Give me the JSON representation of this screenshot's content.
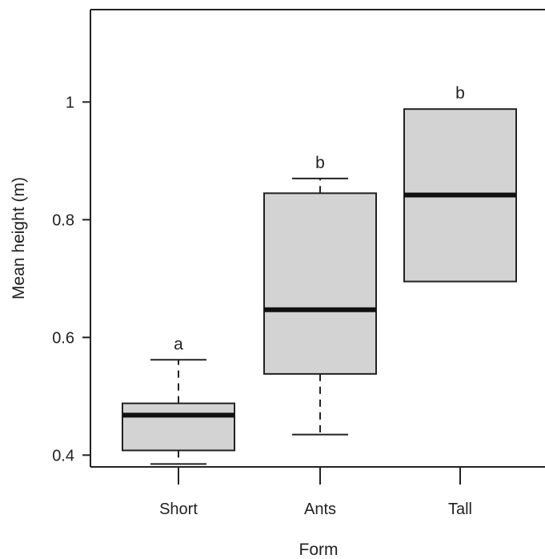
{
  "chart_data": {
    "type": "box",
    "xlabel": "Form",
    "ylabel": "Mean height (m)",
    "ylim": [
      0.38,
      1.157
    ],
    "yticks": [
      0.4,
      0.6,
      0.8,
      1.0
    ],
    "ytick_labels": [
      "0.4",
      "0.6",
      "0.8",
      "1"
    ],
    "categories": [
      "Short",
      "Ants",
      "Tall"
    ],
    "boxes": [
      {
        "category": "Short",
        "whisker_low": 0.385,
        "q1": 0.408,
        "median": 0.468,
        "q3": 0.488,
        "whisker_high": 0.562,
        "letter": "a"
      },
      {
        "category": "Ants",
        "whisker_low": 0.435,
        "q1": 0.538,
        "median": 0.647,
        "q3": 0.845,
        "whisker_high": 0.87,
        "letter": "b"
      },
      {
        "category": "Tall",
        "whisker_low": 0.695,
        "q1": 0.695,
        "median": 0.842,
        "q3": 0.988,
        "whisker_high": 0.988,
        "letter": "b"
      }
    ],
    "box_fill": "#d3d3d3",
    "grid": false,
    "legend": "none"
  }
}
